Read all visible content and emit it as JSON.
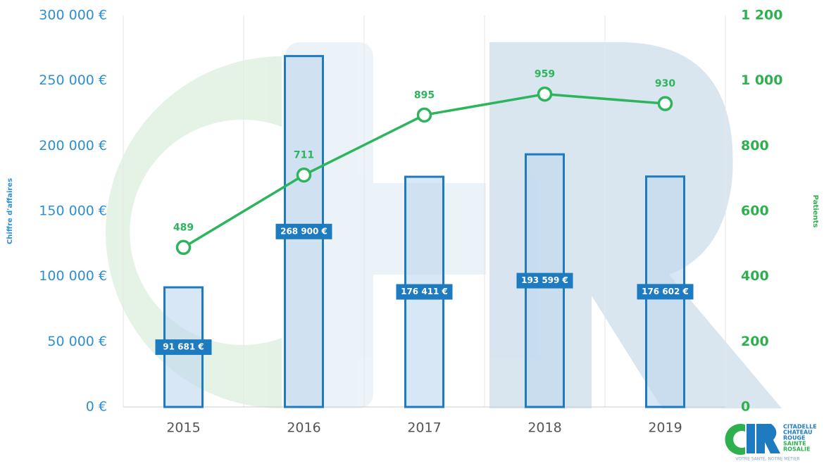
{
  "chart_data": {
    "type": "bar",
    "y_label": "Chiffre d'affaires",
    "y2_label": "Patients",
    "categories": [
      "2015",
      "2016",
      "2017",
      "2018",
      "2019"
    ],
    "series": [
      {
        "type": "bar",
        "color": "#1f7bbf",
        "values": [
          91681,
          268900,
          176411,
          193599,
          176602
        ],
        "value_labels": [
          "91 681 €",
          "268 900 €",
          "176 411 €",
          "193 599 €",
          "176 602 €"
        ]
      },
      {
        "type": "line",
        "axis": "y2",
        "color": "#2db55d",
        "values": [
          489,
          711,
          895,
          959,
          930
        ]
      }
    ],
    "ylim": [
      0,
      300000
    ],
    "yticks": [
      {
        "value": 0,
        "label": "0 €"
      },
      {
        "value": 50000,
        "label": "50 000 €"
      },
      {
        "value": 100000,
        "label": "100 000 €"
      },
      {
        "value": 150000,
        "label": "150 000 €"
      },
      {
        "value": 200000,
        "label": "200 000 €"
      },
      {
        "value": 250000,
        "label": "250 000 €"
      },
      {
        "value": 300000,
        "label": "300 000 €"
      }
    ],
    "y2lim": [
      0,
      1200
    ],
    "y2ticks": [
      0,
      200,
      400,
      600,
      800,
      {
        "value": 1000,
        "label": "1 000"
      },
      {
        "value": 1200,
        "label": "1 200"
      }
    ]
  },
  "logo": {
    "lines": [
      "CITADELLE",
      "CHATEAU",
      "ROUGE",
      "SAINTE",
      "ROSALIE"
    ],
    "tagline": "VOTRE SANTÉ, NOTRE MÉTIER"
  }
}
